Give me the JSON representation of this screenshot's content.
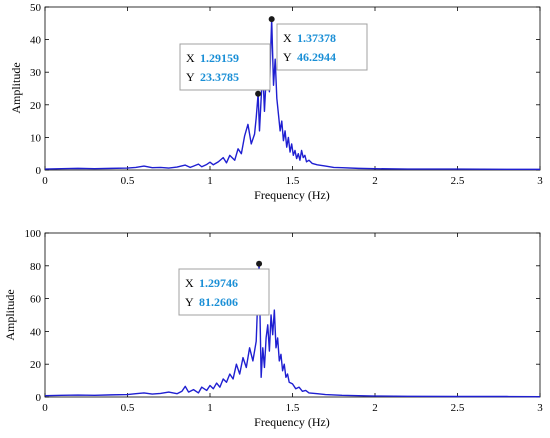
{
  "chart_data": [
    {
      "type": "line",
      "xlabel": "Frequency (Hz)",
      "ylabel": "Amplitude",
      "xlim": [
        0,
        3
      ],
      "ylim": [
        0,
        50
      ],
      "xticks": [
        0,
        0.5,
        1,
        1.5,
        2,
        2.5,
        3
      ],
      "xtick_labels": [
        "0",
        "0.5",
        "1",
        "1.5",
        "2",
        "2.5",
        "3"
      ],
      "yticks": [
        0,
        10,
        20,
        30,
        40,
        50
      ],
      "ytick_labels": [
        "0",
        "10",
        "20",
        "30",
        "40",
        "50"
      ],
      "color": "#1f1fd1",
      "series": [
        {
          "x": [
            0,
            0.1,
            0.2,
            0.3,
            0.4,
            0.5,
            0.55,
            0.6,
            0.65,
            0.7,
            0.75,
            0.8,
            0.85,
            0.88,
            0.9,
            0.93,
            0.95,
            0.98,
            1.0,
            1.02,
            1.05,
            1.08,
            1.1,
            1.12,
            1.15,
            1.17,
            1.19,
            1.21,
            1.23,
            1.25,
            1.27,
            1.28,
            1.29159,
            1.3,
            1.31,
            1.32,
            1.33,
            1.34,
            1.35,
            1.36,
            1.37378,
            1.385,
            1.395,
            1.405,
            1.415,
            1.425,
            1.435,
            1.445,
            1.455,
            1.465,
            1.475,
            1.485,
            1.495,
            1.505,
            1.515,
            1.525,
            1.535,
            1.545,
            1.555,
            1.565,
            1.575,
            1.585,
            1.6,
            1.62,
            1.65,
            1.7,
            1.75,
            1.8,
            1.9,
            2.0,
            2.2,
            2.5,
            2.8,
            3.0
          ],
          "y": [
            0.3,
            0.4,
            0.5,
            0.4,
            0.5,
            0.6,
            0.8,
            1.2,
            0.7,
            0.8,
            0.6,
            0.9,
            1.5,
            0.8,
            1.2,
            1.8,
            1.0,
            1.7,
            2.4,
            1.6,
            2.5,
            3.8,
            2.2,
            4.5,
            3.0,
            6.5,
            5.0,
            10.5,
            14.0,
            8.0,
            11.0,
            16.0,
            23.3785,
            12.0,
            22.0,
            30.5,
            18.0,
            28.0,
            36.0,
            24.0,
            46.2944,
            26.0,
            34.0,
            22.0,
            17.0,
            12.0,
            15.0,
            9.0,
            12.0,
            7.0,
            10.0,
            5.5,
            8.0,
            4.5,
            6.0,
            3.5,
            5.0,
            3.0,
            6.0,
            3.8,
            4.5,
            2.5,
            3.0,
            2.0,
            1.6,
            1.2,
            0.8,
            0.7,
            0.5,
            0.4,
            0.3,
            0.3,
            0.2,
            0.2
          ]
        }
      ],
      "datatips": [
        {
          "x_key": "X",
          "x_value": "1.29159",
          "y_key": "Y",
          "y_value": "23.3785",
          "x": 1.29159,
          "y": 23.3785
        },
        {
          "x_key": "X",
          "x_value": "1.37378",
          "y_key": "Y",
          "y_value": "46.2944",
          "x": 1.37378,
          "y": 46.2944
        }
      ]
    },
    {
      "type": "line",
      "xlabel": "Frequency (Hz)",
      "ylabel": "Amplitude",
      "xlim": [
        0,
        3
      ],
      "ylim": [
        0,
        100
      ],
      "xticks": [
        0,
        0.5,
        1,
        1.5,
        2,
        2.5,
        3
      ],
      "xtick_labels": [
        "0",
        "0.5",
        "1",
        "1.5",
        "2",
        "2.5",
        "3"
      ],
      "yticks": [
        0,
        20,
        40,
        60,
        80,
        100
      ],
      "ytick_labels": [
        "0",
        "20",
        "40",
        "60",
        "80",
        "100"
      ],
      "color": "#1f1fd1",
      "series": [
        {
          "x": [
            0,
            0.1,
            0.2,
            0.3,
            0.4,
            0.5,
            0.55,
            0.6,
            0.65,
            0.7,
            0.75,
            0.8,
            0.83,
            0.85,
            0.87,
            0.9,
            0.93,
            0.95,
            0.98,
            1.0,
            1.02,
            1.04,
            1.06,
            1.08,
            1.1,
            1.12,
            1.14,
            1.16,
            1.18,
            1.2,
            1.22,
            1.24,
            1.26,
            1.28,
            1.29746,
            1.31,
            1.32,
            1.33,
            1.34,
            1.35,
            1.36,
            1.37,
            1.38,
            1.39,
            1.4,
            1.41,
            1.42,
            1.43,
            1.44,
            1.45,
            1.46,
            1.47,
            1.48,
            1.5,
            1.52,
            1.54,
            1.56,
            1.58,
            1.6,
            1.65,
            1.7,
            1.8,
            1.9,
            2.0,
            2.2,
            2.5,
            2.8,
            3.0
          ],
          "y": [
            0.8,
            1.0,
            1.2,
            1.0,
            1.3,
            1.5,
            2.0,
            2.5,
            1.8,
            2.2,
            3.0,
            2.0,
            3.5,
            6.5,
            3.0,
            4.5,
            2.5,
            6.0,
            4.0,
            7.0,
            5.0,
            8.5,
            6.0,
            11.0,
            9.0,
            14.0,
            11.0,
            20.0,
            14.0,
            24.0,
            18.0,
            30.0,
            22.0,
            34.0,
            81.2606,
            12.0,
            30.0,
            18.0,
            36.0,
            44.0,
            28.0,
            50.0,
            38.0,
            53.0,
            30.0,
            36.0,
            22.0,
            26.0,
            16.0,
            20.0,
            12.0,
            14.0,
            9.0,
            8.0,
            5.0,
            6.0,
            3.5,
            4.0,
            2.5,
            2.0,
            1.5,
            1.0,
            0.8,
            0.6,
            0.4,
            0.3,
            0.3,
            0.2
          ]
        }
      ],
      "datatips": [
        {
          "x_key": "X",
          "x_value": "1.29746",
          "y_key": "Y",
          "y_value": "81.2606",
          "x": 1.29746,
          "y": 81.2606
        }
      ]
    }
  ]
}
